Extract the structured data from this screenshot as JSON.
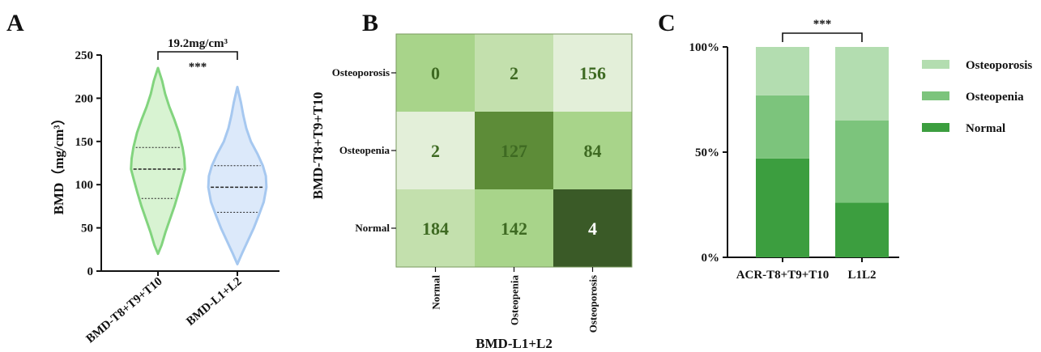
{
  "panels": {
    "a": "A",
    "b": "B",
    "c": "C"
  },
  "chart_data": [
    {
      "type": "violin",
      "panel": "A",
      "ylabel": "BMD（mg/cm³）",
      "ylim": [
        0,
        250
      ],
      "yticks": [
        "0",
        "50",
        "100",
        "150",
        "200",
        "250"
      ],
      "categories": [
        "BMD-T8+T9+T10",
        "BMD-L1+L2"
      ],
      "series": [
        {
          "min": 20,
          "max": 235,
          "q1": 84,
          "median": 118,
          "q3": 143,
          "color": "#82d47e",
          "fill": "#d8f3d2",
          "profile": [
            [
              20,
              0
            ],
            [
              30,
              0.12
            ],
            [
              45,
              0.25
            ],
            [
              60,
              0.4
            ],
            [
              75,
              0.55
            ],
            [
              90,
              0.68
            ],
            [
              105,
              0.8
            ],
            [
              118,
              0.9
            ],
            [
              130,
              0.88
            ],
            [
              143,
              0.82
            ],
            [
              160,
              0.7
            ],
            [
              175,
              0.55
            ],
            [
              190,
              0.38
            ],
            [
              205,
              0.24
            ],
            [
              220,
              0.14
            ],
            [
              235,
              0
            ]
          ]
        },
        {
          "min": 8,
          "max": 213,
          "q1": 68,
          "median": 97,
          "q3": 122,
          "color": "#a6c8f0",
          "fill": "#dce9fa",
          "profile": [
            [
              8,
              0
            ],
            [
              20,
              0.15
            ],
            [
              35,
              0.35
            ],
            [
              50,
              0.55
            ],
            [
              65,
              0.72
            ],
            [
              80,
              0.88
            ],
            [
              97,
              0.97
            ],
            [
              110,
              0.95
            ],
            [
              122,
              0.85
            ],
            [
              135,
              0.68
            ],
            [
              150,
              0.45
            ],
            [
              165,
              0.3
            ],
            [
              180,
              0.2
            ],
            [
              195,
              0.12
            ],
            [
              213,
              0
            ]
          ]
        }
      ],
      "bracket_label": "19.2mg/cm³",
      "significance": "***"
    },
    {
      "type": "heatmap",
      "panel": "B",
      "xlabel": "BMD-L1+L2",
      "ylabel": "BMD-T8+T9+T10",
      "x_categories": [
        "Normal",
        "Osteopenia",
        "Osteoporosis"
      ],
      "y_categories": [
        "Osteoporosis",
        "Osteopenia",
        "Normal"
      ],
      "values": [
        [
          0,
          2,
          156
        ],
        [
          2,
          127,
          84
        ],
        [
          184,
          142,
          4
        ]
      ],
      "colors": [
        [
          "#a8d48a",
          "#c3e0ad",
          "#e3efd9"
        ],
        [
          "#e3efd9",
          "#5d8c38",
          "#a8d48a"
        ],
        [
          "#c3e0ad",
          "#a8d48a",
          "#3a5a27"
        ]
      ],
      "text_color": "#3e6a22",
      "dark_text_color": "#ffffff"
    },
    {
      "type": "stacked_bar",
      "panel": "C",
      "categories": [
        "ACR-T8+T9+T10",
        "L1L2"
      ],
      "yticks": [
        "0%",
        "50%",
        "100%"
      ],
      "ylim": [
        0,
        100
      ],
      "series": [
        {
          "name": "Normal",
          "values": [
            47,
            26
          ],
          "color": "#3c9e3f"
        },
        {
          "name": "Osteopenia",
          "values": [
            30,
            39
          ],
          "color": "#7cc47c"
        },
        {
          "name": "Osteoporosis",
          "values": [
            23,
            35
          ],
          "color": "#b3ddb0"
        }
      ],
      "legend_order": [
        "Osteoporosis",
        "Osteopenia",
        "Normal"
      ],
      "significance": "***"
    }
  ]
}
